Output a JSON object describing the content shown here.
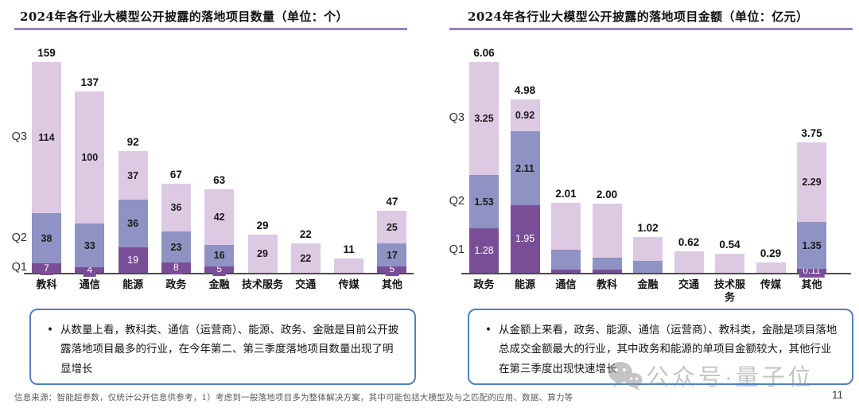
{
  "colors": {
    "series_colors": [
      "#7A4E97",
      "#8E93C3",
      "#DEC9E3"
    ],
    "axis": "#4d4d4d",
    "title_underline": "#9583B9",
    "note_border": "#4F81BD"
  },
  "chart_data": [
    {
      "type": "bar",
      "stacked": true,
      "title": "2024年各行业大模型公开披露的落地项目数量（单位：个）",
      "categories": [
        "教科",
        "通信",
        "能源",
        "政务",
        "金融",
        "技术服务",
        "交通",
        "传媒",
        "其他"
      ],
      "series": [
        {
          "name": "Q1",
          "values": [
            7,
            4,
            19,
            8,
            5,
            0,
            0,
            0,
            5
          ],
          "labels": [
            "7",
            "4",
            "19",
            "8",
            "5",
            "",
            "",
            "",
            "5"
          ]
        },
        {
          "name": "Q2",
          "values": [
            38,
            33,
            36,
            23,
            16,
            0,
            0,
            0,
            17
          ],
          "labels": [
            "38",
            "33",
            "36",
            "23",
            "16",
            "",
            "",
            "",
            "17"
          ]
        },
        {
          "name": "Q3",
          "values": [
            114,
            100,
            37,
            36,
            42,
            29,
            22,
            11,
            25
          ],
          "labels": [
            "114",
            "100",
            "37",
            "36",
            "42",
            "29",
            "22",
            "",
            "25"
          ]
        }
      ],
      "totals": [
        159,
        137,
        92,
        67,
        63,
        29,
        22,
        11,
        47
      ],
      "total_labels": [
        "159",
        "137",
        "92",
        "67",
        "63",
        "29",
        "22",
        "11",
        "47"
      ],
      "y_axis_labels": [
        "Q1",
        "Q2",
        "Q3"
      ],
      "ylim": [
        0,
        170
      ],
      "grid": false,
      "legend": "none"
    },
    {
      "type": "bar",
      "stacked": true,
      "title": "2024年各行业大模型公开披露的落地项目金额（单位：亿元）",
      "categories": [
        "政务",
        "能源",
        "通信",
        "教科",
        "金融",
        "交通",
        "技术服务",
        "传媒",
        "其他"
      ],
      "series": [
        {
          "name": "Q1",
          "values": [
            1.28,
            1.95,
            0.1,
            0.09,
            0,
            0,
            0,
            0,
            0.11
          ],
          "labels": [
            "1.28",
            "1.95",
            "",
            "",
            "",
            "",
            "",
            "",
            "0.11"
          ]
        },
        {
          "name": "Q2",
          "values": [
            1.53,
            2.11,
            0.57,
            0.34,
            0.34,
            0,
            0,
            0,
            1.35
          ],
          "labels": [
            "1.53",
            "2.11",
            "",
            "",
            "",
            "",
            "",
            "",
            "1.35"
          ]
        },
        {
          "name": "Q3",
          "values": [
            3.25,
            0.92,
            1.34,
            1.57,
            0.68,
            0.62,
            0.54,
            0.29,
            2.29
          ],
          "labels": [
            "3.25",
            "0.92",
            "",
            "",
            "",
            "",
            "",
            "",
            "2.29"
          ]
        }
      ],
      "totals": [
        6.06,
        4.98,
        2.01,
        2.0,
        1.02,
        0.62,
        0.54,
        0.29,
        3.75
      ],
      "total_labels": [
        "6.06",
        "4.98",
        "2.01",
        "2.00",
        "1.02",
        "0.62",
        "0.54",
        "0.29",
        "3.75"
      ],
      "y_axis_labels": [
        "Q1",
        "Q2",
        "Q3"
      ],
      "ylim": [
        0,
        6.2
      ],
      "grid": false,
      "legend": "none"
    }
  ],
  "notes": {
    "bullet": "•",
    "items": [
      {
        "text": "从数量上看，教科类、通信（运营商）、能源、政务、金融是目前公开披露落地项目最多的行业，在今年第二、第三季度落地项目数量出现了明显增长"
      },
      {
        "text": "从金额上来看，政务、能源、通信（运营商）、教科类，金融是项目落地总成交金额最大的行业，其中政务和能源的单项目金额较大，其他行业在第三季度出现快速增长"
      }
    ]
  },
  "footer": {
    "text": "信息来源：智能超参数，仅统计公开信息供参考，1）考虑到一般落地项目多为整体解决方案，其中可能包括大模型及与之匹配的应用、数据、算力等",
    "page_number": "11"
  },
  "watermark": {
    "text": "公众号·量子位",
    "icon": "wechat-bubbles-icon"
  }
}
